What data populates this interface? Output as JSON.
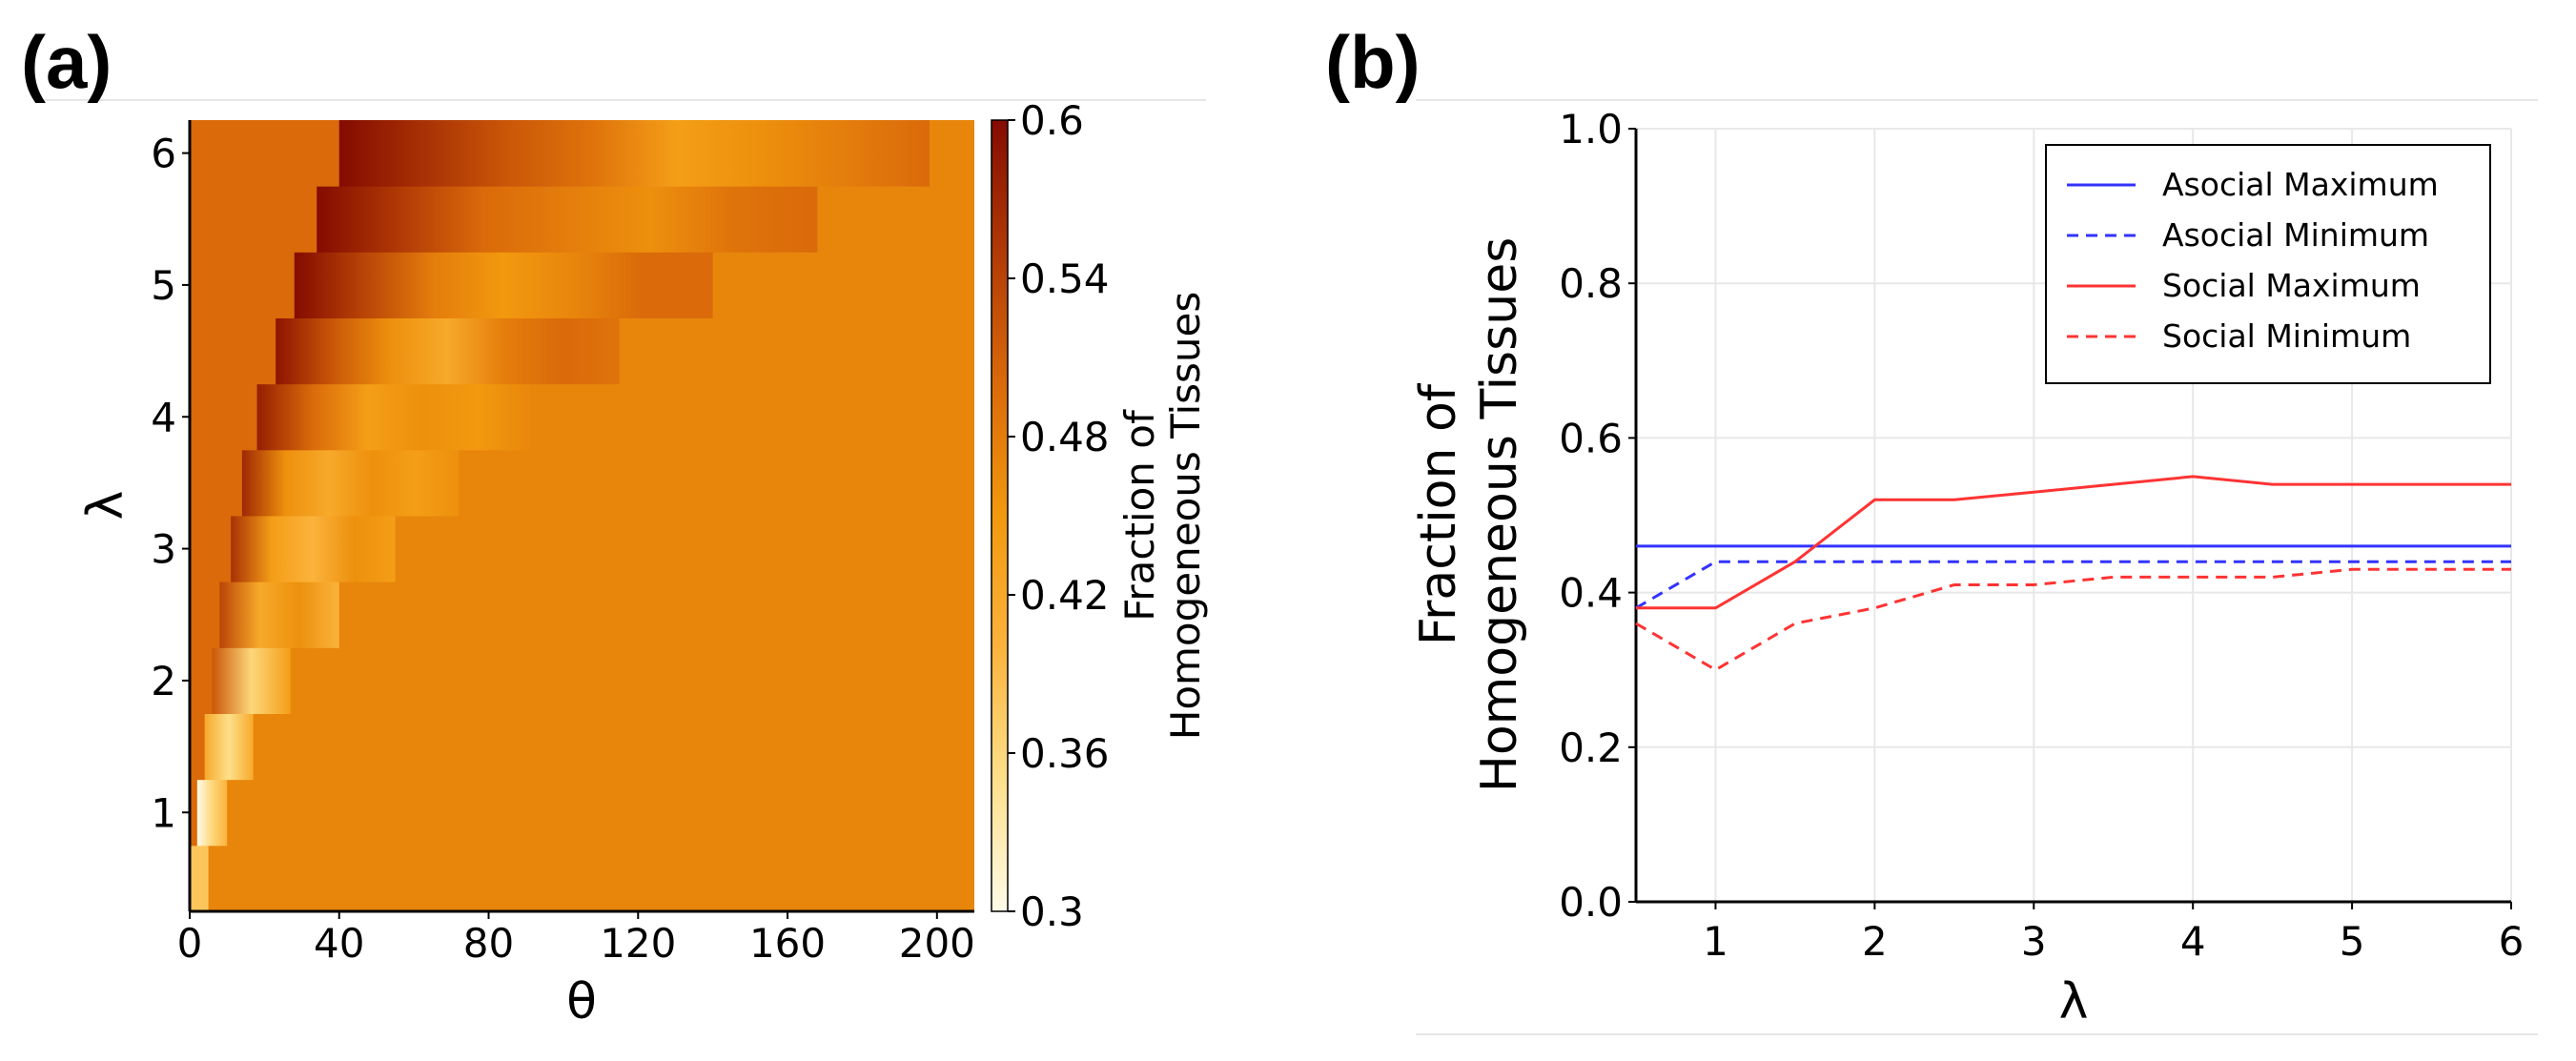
{
  "panels": {
    "a_label": "(a)",
    "b_label": "(b)"
  },
  "chart_data": [
    {
      "type": "heatmap",
      "panel": "(a)",
      "xlabel": "θ",
      "ylabel": "λ",
      "xlim": [
        0,
        210
      ],
      "ylim": [
        0.25,
        6.25
      ],
      "x_ticks": [
        0,
        40,
        80,
        120,
        160,
        200
      ],
      "y_ticks": [
        1,
        2,
        3,
        4,
        5,
        6
      ],
      "lambda_rows": [
        0.5,
        1.0,
        1.5,
        2.0,
        2.5,
        3.0,
        3.5,
        4.0,
        4.5,
        5.0,
        5.5,
        6.0
      ],
      "row_band_theta": [
        [
          0,
          5
        ],
        [
          2,
          10
        ],
        [
          4,
          17
        ],
        [
          6,
          27
        ],
        [
          8,
          40
        ],
        [
          11,
          55
        ],
        [
          14,
          72
        ],
        [
          18,
          92
        ],
        [
          23,
          115
        ],
        [
          28,
          140
        ],
        [
          34,
          168
        ],
        [
          40,
          198
        ]
      ],
      "row_band_values": [
        [
          0.38,
          0.38
        ],
        [
          0.3,
          0.36,
          0.4
        ],
        [
          0.42,
          0.35,
          0.42
        ],
        [
          0.52,
          0.36,
          0.44
        ],
        [
          0.54,
          0.42,
          0.46,
          0.4
        ],
        [
          0.56,
          0.44,
          0.4,
          0.46,
          0.44
        ],
        [
          0.57,
          0.46,
          0.42,
          0.46,
          0.44,
          0.46
        ],
        [
          0.58,
          0.5,
          0.44,
          0.46,
          0.45,
          0.47
        ],
        [
          0.59,
          0.52,
          0.46,
          0.42,
          0.48,
          0.5,
          0.49
        ],
        [
          0.6,
          0.54,
          0.48,
          0.45,
          0.47,
          0.5,
          0.5
        ],
        [
          0.6,
          0.55,
          0.5,
          0.48,
          0.46,
          0.49,
          0.5
        ],
        [
          0.6,
          0.56,
          0.52,
          0.49,
          0.44,
          0.46,
          0.48,
          0.5
        ]
      ],
      "left_region_value": 0.5,
      "background_value": 0.47,
      "colorbar": {
        "min": 0.3,
        "max": 0.6,
        "ticks": [
          "0.6",
          "0.54",
          "0.48",
          "0.42",
          "0.36",
          "0.3"
        ],
        "label_line1": "Fraction of",
        "label_line2": "Homogeneous Tissues",
        "stops": [
          "#fffbe8",
          "#fde08a",
          "#fbb33c",
          "#f2990e",
          "#da6a0a",
          "#b13a06",
          "#840b00"
        ]
      }
    },
    {
      "type": "line",
      "panel": "(b)",
      "xlabel": "λ",
      "ylabel_line1": "Fraction of",
      "ylabel_line2": "Homogeneous Tissues",
      "xlim": [
        0.5,
        6
      ],
      "ylim": [
        0,
        1
      ],
      "x_ticks": [
        "1",
        "2",
        "3",
        "4",
        "5",
        "6"
      ],
      "y_ticks": [
        "0.0",
        "0.2",
        "0.4",
        "0.6",
        "0.8",
        "1.0"
      ],
      "grid": true,
      "legend_position": "top-right",
      "x": [
        0.5,
        1.0,
        1.5,
        2.0,
        2.5,
        3.0,
        3.5,
        4.0,
        4.5,
        5.0,
        5.5,
        6.0
      ],
      "series": [
        {
          "name": "Asocial Maximum",
          "color": "#3333ff",
          "dashed": false,
          "values": [
            0.46,
            0.46,
            0.46,
            0.46,
            0.46,
            0.46,
            0.46,
            0.46,
            0.46,
            0.46,
            0.46,
            0.46
          ]
        },
        {
          "name": "Asocial Minimum",
          "color": "#3333ff",
          "dashed": true,
          "values": [
            0.38,
            0.44,
            0.44,
            0.44,
            0.44,
            0.44,
            0.44,
            0.44,
            0.44,
            0.44,
            0.44,
            0.44
          ]
        },
        {
          "name": "Social Maximum",
          "color": "#ff3333",
          "dashed": false,
          "values": [
            0.38,
            0.38,
            0.44,
            0.52,
            0.52,
            0.53,
            0.54,
            0.55,
            0.54,
            0.54,
            0.54,
            0.54
          ]
        },
        {
          "name": "Social Minimum",
          "color": "#ff3333",
          "dashed": true,
          "values": [
            0.36,
            0.3,
            0.36,
            0.38,
            0.41,
            0.41,
            0.42,
            0.42,
            0.42,
            0.43,
            0.43,
            0.43
          ]
        }
      ]
    }
  ]
}
